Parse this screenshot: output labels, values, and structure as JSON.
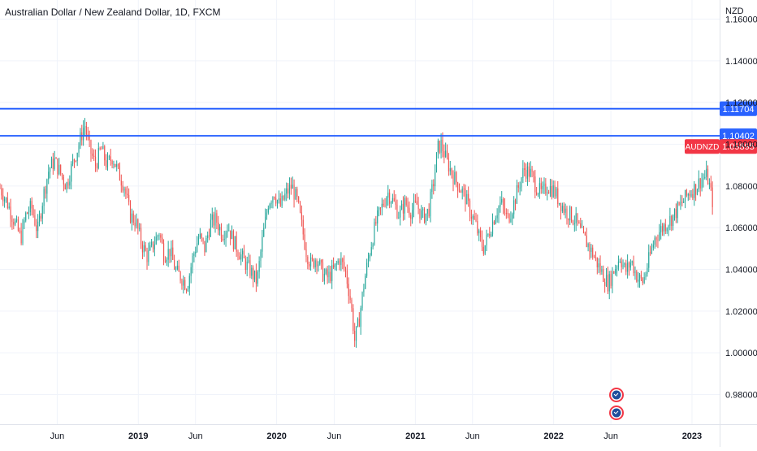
{
  "header": {
    "symbol_name": "Australian Dollar / New Zealand Dollar",
    "interval": "1D",
    "exchange": "FXCM",
    "currency": "NZD"
  },
  "colors": {
    "up": "#26a69a",
    "down": "#ef5350",
    "level_line": "#2962ff",
    "grid": "#f0f3fa",
    "axis_text": "#131722",
    "current_label_bg": "#f23645",
    "event_ring": "#f23645",
    "event_fill": "#1f4e9c"
  },
  "chart_data": {
    "type": "candlestick",
    "symbol": "AUDNZD",
    "y_axis": {
      "label": "NZD",
      "ticks": [
        "1.16000",
        "1.14000",
        "1.12000",
        "1.10000",
        "1.08000",
        "1.06000",
        "1.04000",
        "1.02000",
        "1.00000",
        "0.98000"
      ],
      "tick_values": [
        1.16,
        1.14,
        1.12,
        1.1,
        1.08,
        1.06,
        1.04,
        1.02,
        1.0,
        0.98
      ],
      "range": [
        0.975,
        1.17
      ]
    },
    "x_axis": {
      "ticks": [
        "Jun",
        "2019",
        "Jun",
        "2020",
        "Jun",
        "2021",
        "Jun",
        "2022",
        "Jun",
        "2023"
      ],
      "tick_dates": [
        "2018-06-01",
        "2019-01-01",
        "2019-06-01",
        "2020-01-01",
        "2020-06-01",
        "2021-01-01",
        "2021-06-01",
        "2022-01-01",
        "2022-06-01",
        "2023-01-01"
      ],
      "range": [
        "2018-01-01",
        "2023-03-15"
      ]
    },
    "horizontal_levels": [
      {
        "value": 1.11704,
        "label": "1.11704"
      },
      {
        "value": 1.10402,
        "label": "1.10402"
      }
    ],
    "current_price": {
      "symbol": "AUDNZD",
      "value": 1.09895,
      "label": "1.09895"
    },
    "price_path": [
      [
        "2018-01-01",
        1.079
      ],
      [
        "2018-01-20",
        1.072
      ],
      [
        "2018-02-10",
        1.062
      ],
      [
        "2018-02-25",
        1.055
      ],
      [
        "2018-03-10",
        1.066
      ],
      [
        "2018-03-25",
        1.07
      ],
      [
        "2018-04-10",
        1.058
      ],
      [
        "2018-04-25",
        1.075
      ],
      [
        "2018-05-10",
        1.088
      ],
      [
        "2018-05-25",
        1.092
      ],
      [
        "2018-06-10",
        1.086
      ],
      [
        "2018-06-25",
        1.08
      ],
      [
        "2018-07-10",
        1.09
      ],
      [
        "2018-07-25",
        1.098
      ],
      [
        "2018-08-05",
        1.105
      ],
      [
        "2018-08-12",
        1.11
      ],
      [
        "2018-08-25",
        1.098
      ],
      [
        "2018-09-10",
        1.09
      ],
      [
        "2018-09-25",
        1.098
      ],
      [
        "2018-10-10",
        1.09
      ],
      [
        "2018-10-25",
        1.094
      ],
      [
        "2018-11-10",
        1.086
      ],
      [
        "2018-11-25",
        1.08
      ],
      [
        "2018-12-10",
        1.066
      ],
      [
        "2018-12-25",
        1.063
      ],
      [
        "2019-01-10",
        1.052
      ],
      [
        "2019-01-25",
        1.046
      ],
      [
        "2019-02-10",
        1.052
      ],
      [
        "2019-02-25",
        1.058
      ],
      [
        "2019-03-10",
        1.047
      ],
      [
        "2019-03-25",
        1.049
      ],
      [
        "2019-04-10",
        1.039
      ],
      [
        "2019-04-25",
        1.036
      ],
      [
        "2019-05-10",
        1.032
      ],
      [
        "2019-05-25",
        1.046
      ],
      [
        "2019-06-10",
        1.056
      ],
      [
        "2019-06-25",
        1.05
      ],
      [
        "2019-07-10",
        1.062
      ],
      [
        "2019-07-25",
        1.064
      ],
      [
        "2019-08-10",
        1.057
      ],
      [
        "2019-08-25",
        1.061
      ],
      [
        "2019-09-10",
        1.053
      ],
      [
        "2019-09-25",
        1.048
      ],
      [
        "2019-10-10",
        1.043
      ],
      [
        "2019-10-25",
        1.039
      ],
      [
        "2019-11-10",
        1.034
      ],
      [
        "2019-11-25",
        1.055
      ],
      [
        "2019-12-10",
        1.072
      ],
      [
        "2019-12-25",
        1.077
      ],
      [
        "2020-01-10",
        1.07
      ],
      [
        "2020-01-25",
        1.076
      ],
      [
        "2020-02-10",
        1.08
      ],
      [
        "2020-02-25",
        1.072
      ],
      [
        "2020-03-10",
        1.058
      ],
      [
        "2020-03-20",
        1.048
      ],
      [
        "2020-04-01",
        1.042
      ],
      [
        "2020-04-15",
        1.046
      ],
      [
        "2020-05-01",
        1.038
      ],
      [
        "2020-05-15",
        1.036
      ],
      [
        "2020-06-01",
        1.04
      ],
      [
        "2020-06-15",
        1.045
      ],
      [
        "2020-07-01",
        1.039
      ],
      [
        "2020-07-15",
        1.024
      ],
      [
        "2020-07-25",
        1.006
      ],
      [
        "2020-08-05",
        1.015
      ],
      [
        "2020-08-20",
        1.035
      ],
      [
        "2020-09-05",
        1.051
      ],
      [
        "2020-09-20",
        1.063
      ],
      [
        "2020-10-05",
        1.07
      ],
      [
        "2020-10-20",
        1.077
      ],
      [
        "2020-11-05",
        1.072
      ],
      [
        "2020-11-20",
        1.066
      ],
      [
        "2020-12-05",
        1.072
      ],
      [
        "2020-12-20",
        1.068
      ],
      [
        "2021-01-05",
        1.071
      ],
      [
        "2021-01-20",
        1.065
      ],
      [
        "2021-02-05",
        1.068
      ],
      [
        "2021-02-20",
        1.084
      ],
      [
        "2021-03-01",
        1.098
      ],
      [
        "2021-03-10",
        1.1
      ],
      [
        "2021-03-25",
        1.092
      ],
      [
        "2021-04-10",
        1.085
      ],
      [
        "2021-04-25",
        1.08
      ],
      [
        "2021-05-10",
        1.076
      ],
      [
        "2021-05-25",
        1.068
      ],
      [
        "2021-06-10",
        1.061
      ],
      [
        "2021-06-20",
        1.054
      ],
      [
        "2021-07-01",
        1.05
      ],
      [
        "2021-07-15",
        1.058
      ],
      [
        "2021-08-01",
        1.067
      ],
      [
        "2021-08-15",
        1.072
      ],
      [
        "2021-09-01",
        1.064
      ],
      [
        "2021-09-15",
        1.07
      ],
      [
        "2021-10-01",
        1.08
      ],
      [
        "2021-10-15",
        1.088
      ],
      [
        "2021-11-01",
        1.086
      ],
      [
        "2021-11-15",
        1.08
      ],
      [
        "2021-12-01",
        1.076
      ],
      [
        "2021-12-15",
        1.08
      ],
      [
        "2022-01-01",
        1.078
      ],
      [
        "2022-01-15",
        1.073
      ],
      [
        "2022-02-01",
        1.068
      ],
      [
        "2022-02-15",
        1.066
      ],
      [
        "2022-03-01",
        1.063
      ],
      [
        "2022-03-15",
        1.057
      ],
      [
        "2022-04-01",
        1.052
      ],
      [
        "2022-04-15",
        1.047
      ],
      [
        "2022-05-01",
        1.041
      ],
      [
        "2022-05-15",
        1.036
      ],
      [
        "2022-05-25",
        1.033
      ],
      [
        "2022-06-10",
        1.04
      ],
      [
        "2022-06-25",
        1.046
      ],
      [
        "2022-07-10",
        1.039
      ],
      [
        "2022-07-25",
        1.044
      ],
      [
        "2022-08-10",
        1.036
      ],
      [
        "2022-08-25",
        1.034
      ],
      [
        "2022-09-10",
        1.045
      ],
      [
        "2022-09-25",
        1.055
      ],
      [
        "2022-10-10",
        1.059
      ],
      [
        "2022-10-25",
        1.062
      ],
      [
        "2022-11-10",
        1.065
      ],
      [
        "2022-11-25",
        1.069
      ],
      [
        "2022-12-10",
        1.073
      ],
      [
        "2022-12-25",
        1.077
      ],
      [
        "2023-01-10",
        1.079
      ],
      [
        "2023-01-25",
        1.083
      ],
      [
        "2023-02-10",
        1.085
      ],
      [
        "2023-02-25",
        1.072
      ]
    ]
  }
}
